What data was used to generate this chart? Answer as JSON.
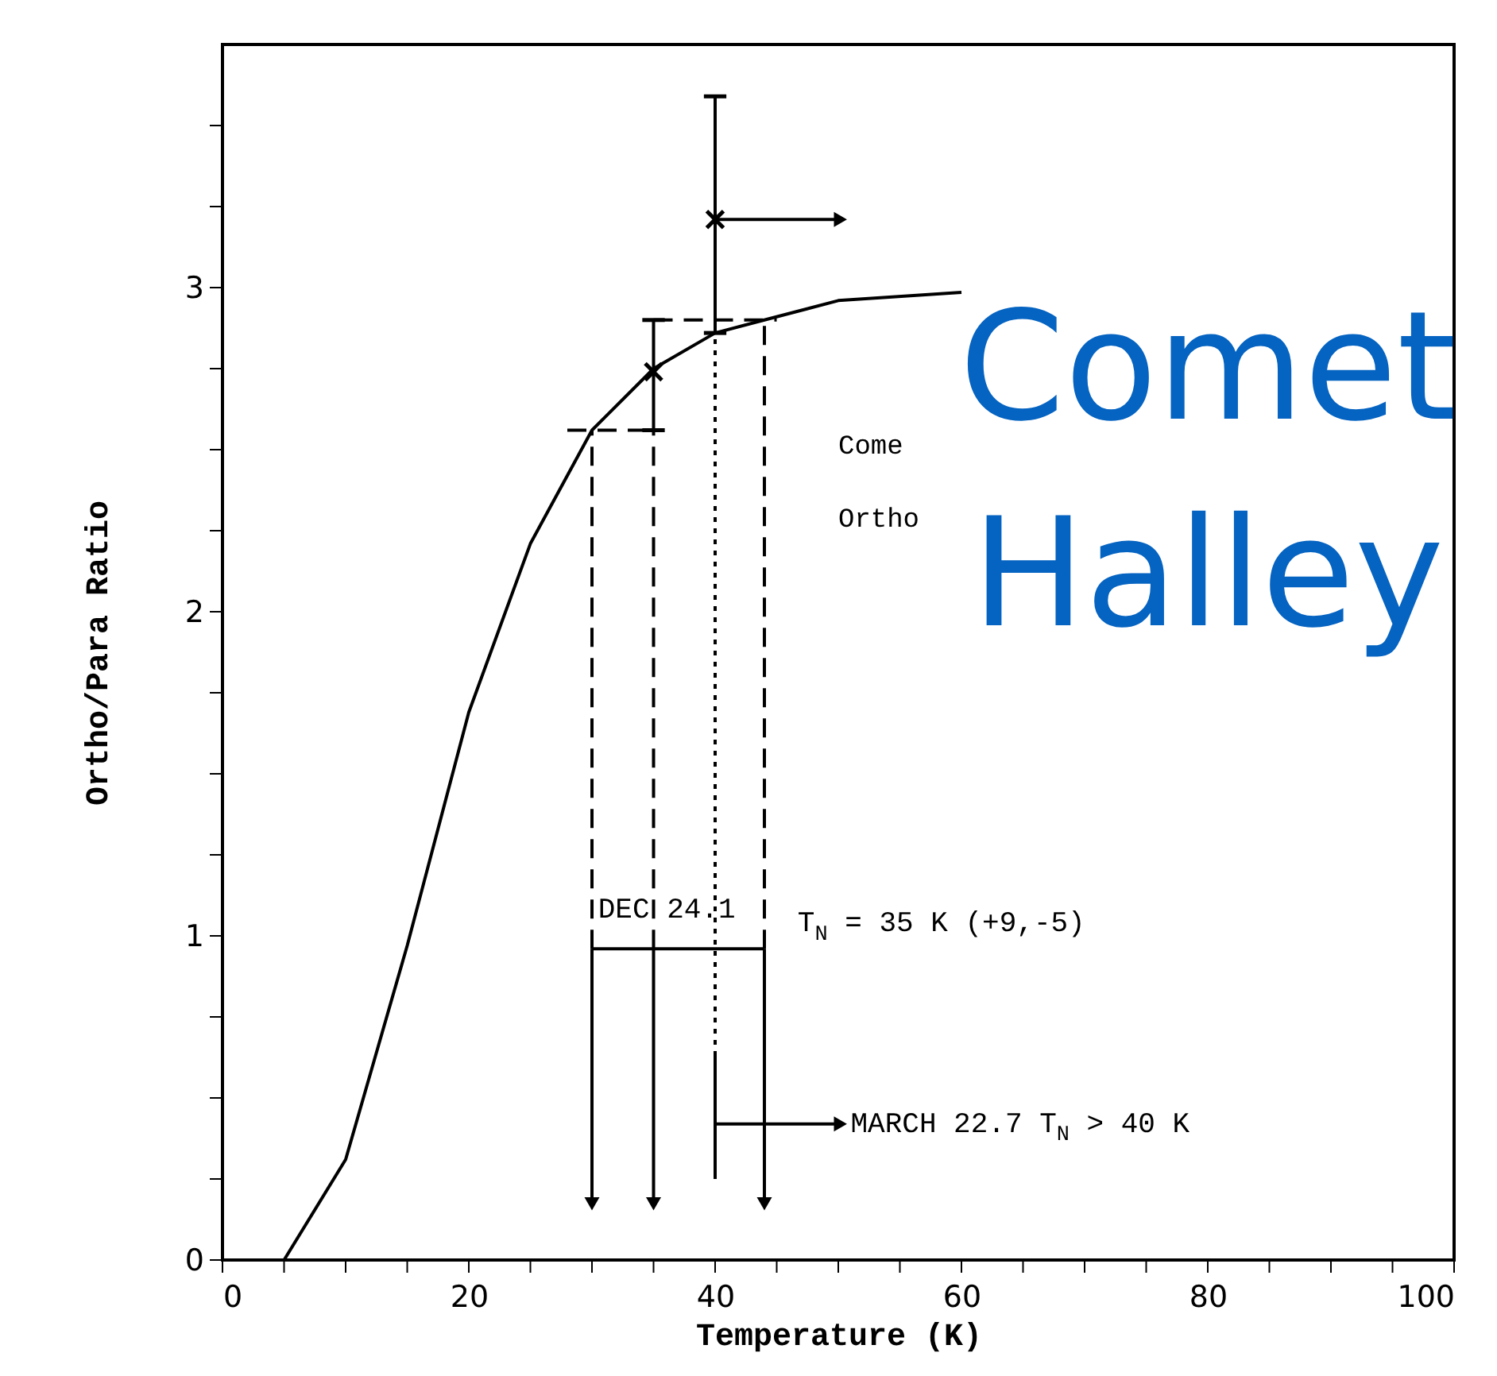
{
  "chart_data": {
    "type": "line",
    "xlabel": "Temperature (K)",
    "ylabel": "Ortho/Para Ratio",
    "xlim": [
      0,
      100
    ],
    "ylim": [
      0,
      3.75
    ],
    "xticks": [
      0,
      {
        "value": 5,
        "label": null
      },
      {
        "value": 10,
        "label": null
      },
      {
        "value": 15,
        "label": null
      },
      20,
      {
        "value": 25,
        "label": null
      },
      {
        "value": 30,
        "label": null
      },
      {
        "value": 35,
        "label": null
      },
      40,
      {
        "value": 45,
        "label": null
      },
      {
        "value": 50,
        "label": null
      },
      {
        "value": 55,
        "label": null
      },
      60,
      {
        "value": 65,
        "label": null
      },
      {
        "value": 70,
        "label": null
      },
      {
        "value": 75,
        "label": null
      },
      80,
      {
        "value": 85,
        "label": null
      },
      {
        "value": 90,
        "label": null
      },
      {
        "value": 95,
        "label": null
      },
      100
    ],
    "yticks": [
      0,
      {
        "value": 0.25,
        "label": null
      },
      {
        "value": 0.5,
        "label": null
      },
      {
        "value": 0.75,
        "label": null
      },
      1,
      {
        "value": 1.25,
        "label": null
      },
      {
        "value": 1.5,
        "label": null
      },
      {
        "value": 1.75,
        "label": null
      },
      2,
      {
        "value": 2.25,
        "label": null
      },
      {
        "value": 2.5,
        "label": null
      },
      {
        "value": 2.75,
        "label": null
      },
      3,
      {
        "value": 3.25,
        "label": null
      },
      {
        "value": 3.5,
        "label": null
      }
    ],
    "grid": false,
    "series": [
      {
        "type": "line",
        "color": "#000000",
        "line_style": "solid",
        "x": [
          5,
          10,
          15,
          20,
          25,
          30,
          35,
          40,
          44,
          50,
          60
        ],
        "values": [
          0,
          0.31,
          0.97,
          1.69,
          2.21,
          2.56,
          2.75,
          2.86,
          2.9,
          2.96,
          2.985
        ]
      },
      {
        "type": "scatter",
        "color": "#000000",
        "marker": "cross",
        "x": [
          35,
          40
        ],
        "values": [
          2.74,
          3.21
        ],
        "errors": [
          [
            2.56,
            2.9
          ],
          [
            2.86,
            3.59
          ]
        ]
      },
      {
        "type": "line",
        "color": "#000000",
        "line_style": "dashed",
        "x": [
          28,
          35
        ],
        "values": [
          2.56,
          2.56
        ]
      },
      {
        "type": "line",
        "color": "#000000",
        "line_style": "dashed",
        "x": [
          35,
          45
        ],
        "values": [
          2.9,
          2.9
        ]
      },
      {
        "type": "line",
        "color": "#000000",
        "line_style": "dashed",
        "x": [
          30,
          30
        ],
        "values": [
          0.96,
          2.56
        ]
      },
      {
        "type": "line",
        "color": "#000000",
        "line_style": "dashed",
        "x": [
          35,
          35
        ],
        "values": [
          0.96,
          2.56
        ]
      },
      {
        "type": "line",
        "color": "#000000",
        "line_style": "dashed",
        "x": [
          44,
          44
        ],
        "values": [
          0.96,
          2.9
        ]
      },
      {
        "type": "line",
        "color": "#000000",
        "line_style": "dotted",
        "x": [
          40,
          40
        ],
        "values": [
          0.63,
          2.86
        ]
      },
      {
        "type": "line",
        "color": "#000000",
        "line_style": "solid",
        "x": [
          30,
          44
        ],
        "values": [
          0.96,
          0.96
        ]
      },
      {
        "type": "line",
        "color": "#000000",
        "line_style": "solid",
        "x": [
          40,
          40
        ],
        "values": [
          0.25,
          0.63
        ]
      },
      {
        "type": "line",
        "color": "#000000",
        "line_style": "solid",
        "marker": "triangle",
        "x": [
          30,
          30
        ],
        "values": [
          0.96,
          0.18
        ]
      },
      {
        "type": "line",
        "color": "#000000",
        "line_style": "solid",
        "marker": "triangle",
        "x": [
          35,
          35
        ],
        "values": [
          0.96,
          0.18
        ]
      },
      {
        "type": "line",
        "color": "#000000",
        "line_style": "solid",
        "marker": "triangle",
        "x": [
          44,
          44
        ],
        "values": [
          0.96,
          0.18
        ]
      },
      {
        "type": "line",
        "color": "#000000",
        "line_style": "solid",
        "marker": "triangle",
        "x": [
          40,
          50
        ],
        "values": [
          0.42,
          0.42
        ]
      },
      {
        "type": "line",
        "color": "#000000",
        "line_style": "solid",
        "marker": "triangle",
        "x": [
          40,
          50
        ],
        "values": [
          3.21,
          3.21
        ]
      }
    ],
    "annotations": [
      {
        "text": "DEC 24.1",
        "x": 30.5,
        "y": 1.08
      },
      "T$_{N}$ = 35 K (+9,-5)",
      {
        "text": "MARCH 22.7 T$_{N}$ > 40 K",
        "x": 51,
        "y": 0.42
      },
      "Come",
      "Ortho",
      "Comet Halley"
    ]
  }
}
